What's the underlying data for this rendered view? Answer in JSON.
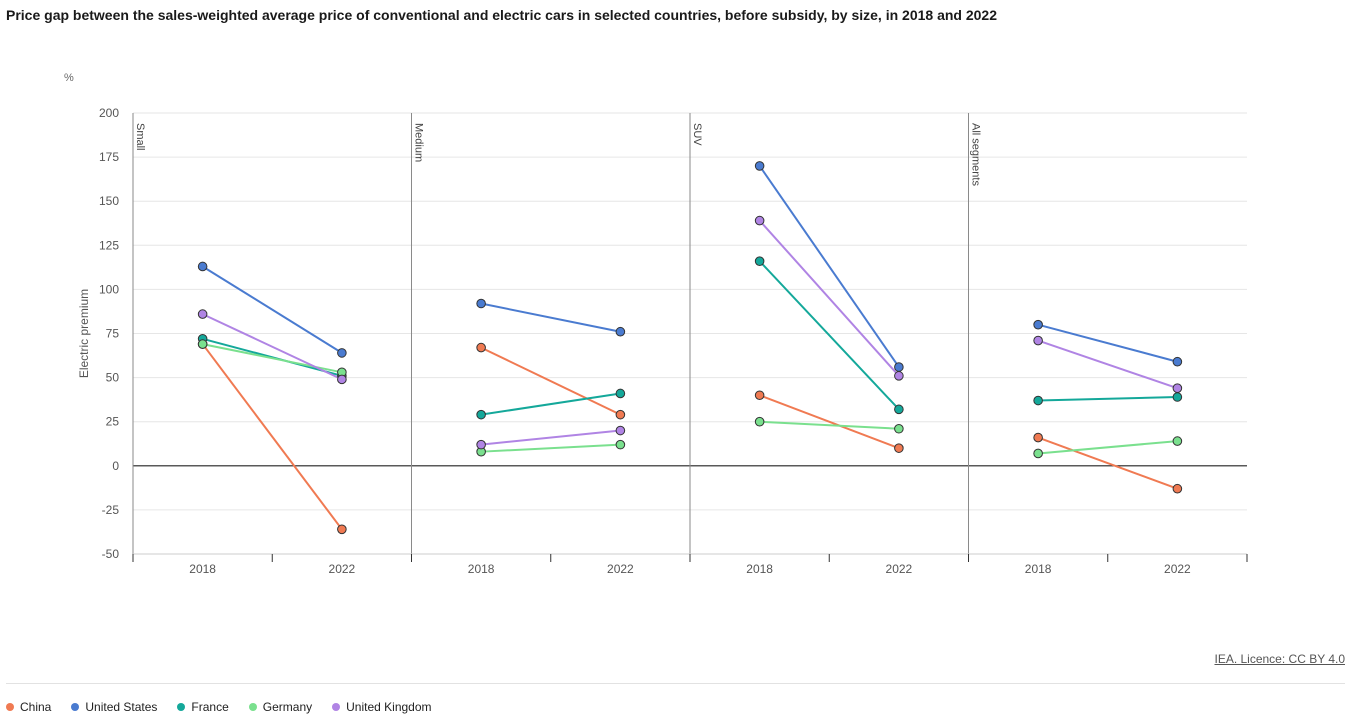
{
  "title": "Price gap between the sales-weighted average price of conventional and electric cars in selected countries, before subsidy, by size, in 2018 and 2022",
  "source_link": "IEA. Licence: CC BY 4.0",
  "chart_data": {
    "type": "line",
    "unit": "%",
    "ylabel": "Electric premium",
    "ylim": [
      -50,
      200
    ],
    "yticks": [
      200,
      175,
      150,
      125,
      100,
      75,
      50,
      25,
      0,
      -25,
      -50
    ],
    "grid": true,
    "legend_position": "bottom-left",
    "x": [
      "2018",
      "2022"
    ],
    "panels": [
      "Small",
      "Medium",
      "SUV",
      "All segments"
    ],
    "series": [
      {
        "name": "China",
        "color": "#f07a52",
        "values": [
          [
            69,
            -36
          ],
          [
            67,
            29
          ],
          [
            40,
            10
          ],
          [
            16,
            -13
          ]
        ]
      },
      {
        "name": "United States",
        "color": "#4a7bd0",
        "values": [
          [
            113,
            64
          ],
          [
            92,
            76
          ],
          [
            170,
            56
          ],
          [
            80,
            59
          ]
        ]
      },
      {
        "name": "France",
        "color": "#14a89a",
        "values": [
          [
            72,
            51
          ],
          [
            29,
            41
          ],
          [
            116,
            32
          ],
          [
            37,
            39
          ]
        ]
      },
      {
        "name": "Germany",
        "color": "#7ae08e",
        "values": [
          [
            69,
            53
          ],
          [
            8,
            12
          ],
          [
            25,
            21
          ],
          [
            7,
            14
          ]
        ]
      },
      {
        "name": "United Kingdom",
        "color": "#b084e4",
        "values": [
          [
            86,
            49
          ],
          [
            12,
            20
          ],
          [
            139,
            51
          ],
          [
            71,
            44
          ]
        ]
      }
    ]
  }
}
